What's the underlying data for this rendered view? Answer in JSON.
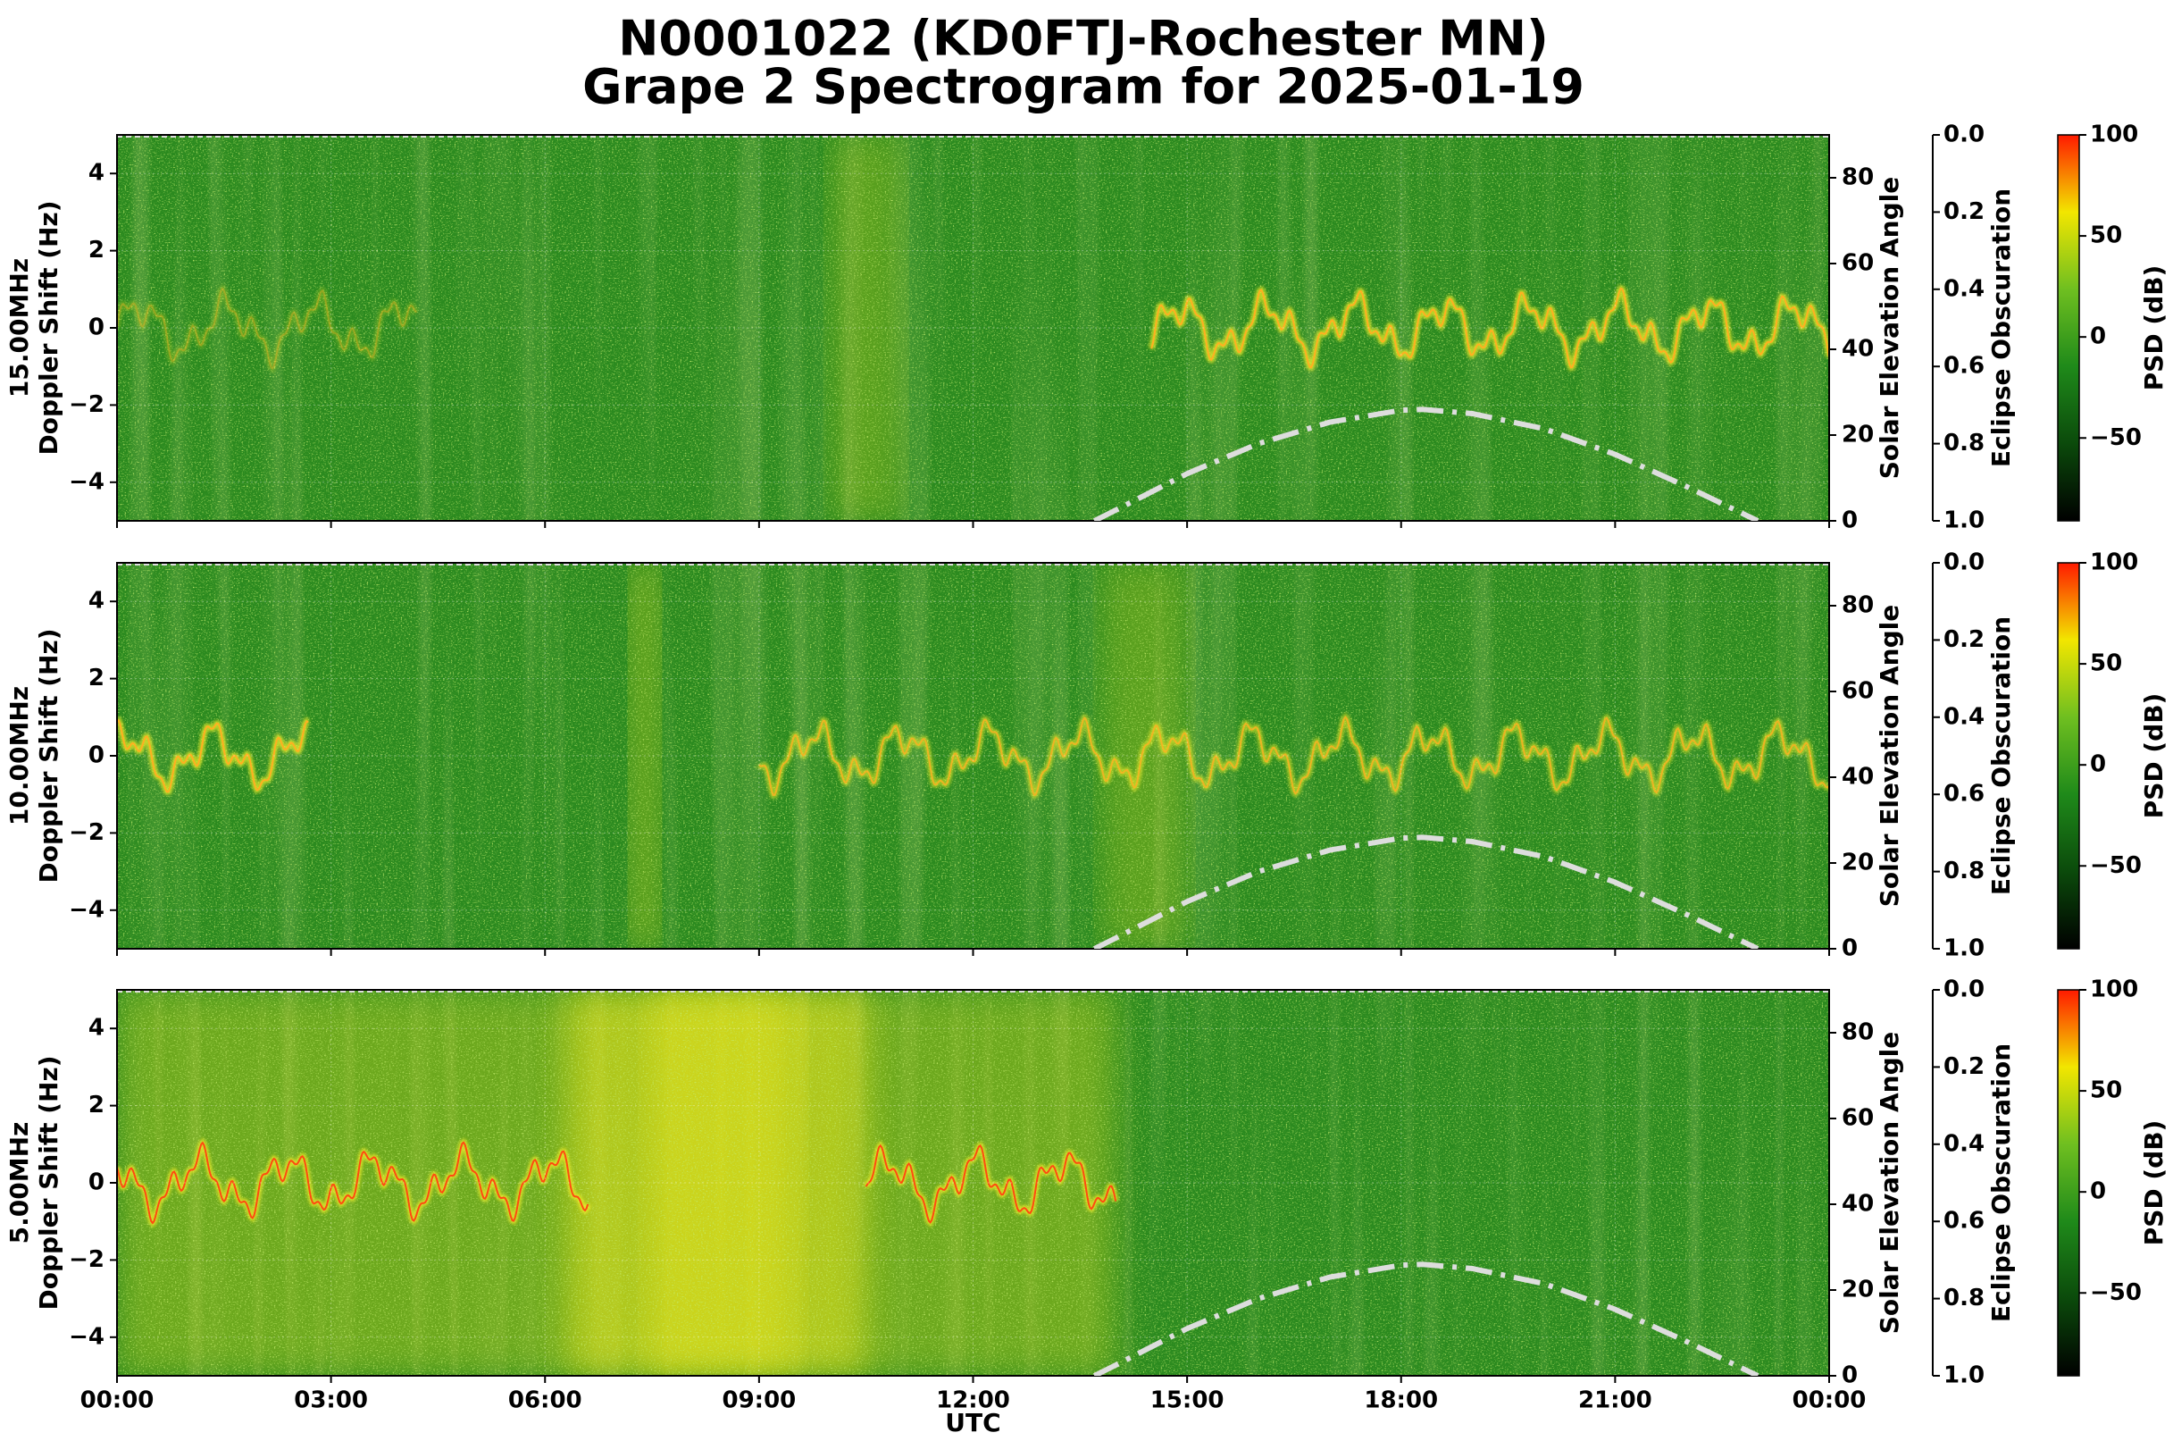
{
  "title": "N0001022 (KD0FTJ-Rochester MN)",
  "subtitle": "Grape 2 Spectrogram for 2025-01-19",
  "chart_data": [
    {
      "type": "spectrogram",
      "band": "15.00MHz",
      "ylabel": "Doppler Shift (Hz)",
      "ylim": [
        -5,
        5
      ],
      "yticks": [
        {
          "value": -4,
          "label": "−4"
        },
        {
          "value": -2,
          "label": "−2"
        },
        0,
        2,
        4
      ],
      "xlim": [
        0,
        24
      ],
      "xticks": [
        0,
        3,
        6,
        9,
        12,
        15,
        18,
        21,
        24
      ],
      "grid": true,
      "y2label": "Solar Elevation Angle",
      "y2lim": [
        0,
        90
      ],
      "y2ticks": [
        0,
        20,
        40,
        60,
        80
      ],
      "eclipse": {
        "label": "Eclipse Obscuration",
        "lim": [
          1,
          0
        ],
        "ticks": [
          {
            "value": 0,
            "label": "0.0"
          },
          {
            "value": 0.2,
            "label": "0.2"
          },
          {
            "value": 0.4,
            "label": "0.4"
          },
          {
            "value": 0.6,
            "label": "0.6"
          },
          {
            "value": 0.8,
            "label": "0.8"
          },
          {
            "value": 1,
            "label": "1.0"
          }
        ]
      },
      "colorbar": {
        "label": "PSD (dB)",
        "lim": [
          -91,
          100
        ],
        "ticks": [
          {
            "value": -50,
            "label": "−50"
          },
          0,
          50,
          100
        ],
        "colors": [
          "#000000",
          "#0b4a0b",
          "#1f8a1a",
          "#6fbf20",
          "#f2e600",
          "#ff1a00"
        ]
      },
      "solar_elevation": {
        "color": "#dddddd",
        "axis": "y2",
        "x": [
          13.7,
          14,
          15,
          16,
          17,
          18,
          18.3,
          19,
          20,
          21,
          22,
          23
        ],
        "values": [
          0,
          2.5,
          11,
          18,
          23,
          25.8,
          26,
          25,
          21.5,
          15.5,
          8,
          0
        ]
      }
    },
    {
      "type": "spectrogram",
      "band": "10.00MHz",
      "ylabel": "Doppler Shift (Hz)",
      "ylim": [
        -5,
        5
      ],
      "yticks": [
        {
          "value": -4,
          "label": "−4"
        },
        {
          "value": -2,
          "label": "−2"
        },
        0,
        2,
        4
      ],
      "xlim": [
        0,
        24
      ],
      "xticks": [
        0,
        3,
        6,
        9,
        12,
        15,
        18,
        21,
        24
      ],
      "grid": true,
      "y2label": "Solar Elevation Angle",
      "y2lim": [
        0,
        90
      ],
      "y2ticks": [
        0,
        20,
        40,
        60,
        80
      ],
      "eclipse": {
        "label": "Eclipse Obscuration",
        "lim": [
          1,
          0
        ],
        "ticks": [
          {
            "value": 0,
            "label": "0.0"
          },
          {
            "value": 0.2,
            "label": "0.2"
          },
          {
            "value": 0.4,
            "label": "0.4"
          },
          {
            "value": 0.6,
            "label": "0.6"
          },
          {
            "value": 0.8,
            "label": "0.8"
          },
          {
            "value": 1,
            "label": "1.0"
          }
        ]
      },
      "colorbar": {
        "label": "PSD (dB)",
        "lim": [
          -91,
          100
        ],
        "ticks": [
          {
            "value": -50,
            "label": "−50"
          },
          0,
          50,
          100
        ],
        "colors": [
          "#000000",
          "#0b4a0b",
          "#1f8a1a",
          "#6fbf20",
          "#f2e600",
          "#ff1a00"
        ]
      },
      "solar_elevation": {
        "color": "#dddddd",
        "axis": "y2",
        "x": [
          13.7,
          14,
          15,
          16,
          17,
          18,
          18.3,
          19,
          20,
          21,
          22,
          23
        ],
        "values": [
          0,
          2.5,
          11,
          18,
          23,
          25.8,
          26,
          25,
          21.5,
          15.5,
          8,
          0
        ]
      }
    },
    {
      "type": "spectrogram",
      "band": "5.00MHz",
      "ylabel": "Doppler Shift (Hz)",
      "ylim": [
        -5,
        5
      ],
      "yticks": [
        {
          "value": -4,
          "label": "−4"
        },
        {
          "value": -2,
          "label": "−2"
        },
        0,
        2,
        4
      ],
      "xlim": [
        0,
        24
      ],
      "xticks": [
        {
          "value": 0,
          "label": "00:00"
        },
        {
          "value": 3,
          "label": "03:00"
        },
        {
          "value": 6,
          "label": "06:00"
        },
        {
          "value": 9,
          "label": "09:00"
        },
        {
          "value": 12,
          "label": "12:00"
        },
        {
          "value": 15,
          "label": "15:00"
        },
        {
          "value": 18,
          "label": "18:00"
        },
        {
          "value": 21,
          "label": "21:00"
        },
        {
          "value": 24,
          "label": "00:00"
        }
      ],
      "xlabel": "UTC",
      "grid": true,
      "y2label": "Solar Elevation Angle",
      "y2lim": [
        0,
        90
      ],
      "y2ticks": [
        0,
        20,
        40,
        60,
        80
      ],
      "eclipse": {
        "label": "Eclipse Obscuration",
        "lim": [
          1,
          0
        ],
        "ticks": [
          {
            "value": 0,
            "label": "0.0"
          },
          {
            "value": 0.2,
            "label": "0.2"
          },
          {
            "value": 0.4,
            "label": "0.4"
          },
          {
            "value": 0.6,
            "label": "0.6"
          },
          {
            "value": 0.8,
            "label": "0.8"
          },
          {
            "value": 1,
            "label": "1.0"
          }
        ]
      },
      "colorbar": {
        "label": "PSD (dB)",
        "lim": [
          -91,
          100
        ],
        "ticks": [
          {
            "value": -50,
            "label": "−50"
          },
          0,
          50,
          100
        ],
        "colors": [
          "#000000",
          "#0b4a0b",
          "#1f8a1a",
          "#6fbf20",
          "#f2e600",
          "#ff1a00"
        ]
      },
      "solar_elevation": {
        "color": "#dddddd",
        "axis": "y2",
        "x": [
          13.7,
          14,
          15,
          16,
          17,
          18,
          18.3,
          19,
          20,
          21,
          22,
          23
        ],
        "values": [
          0,
          2.5,
          11,
          18,
          23,
          25.8,
          26,
          25,
          21.5,
          15.5,
          8,
          0
        ]
      }
    }
  ]
}
